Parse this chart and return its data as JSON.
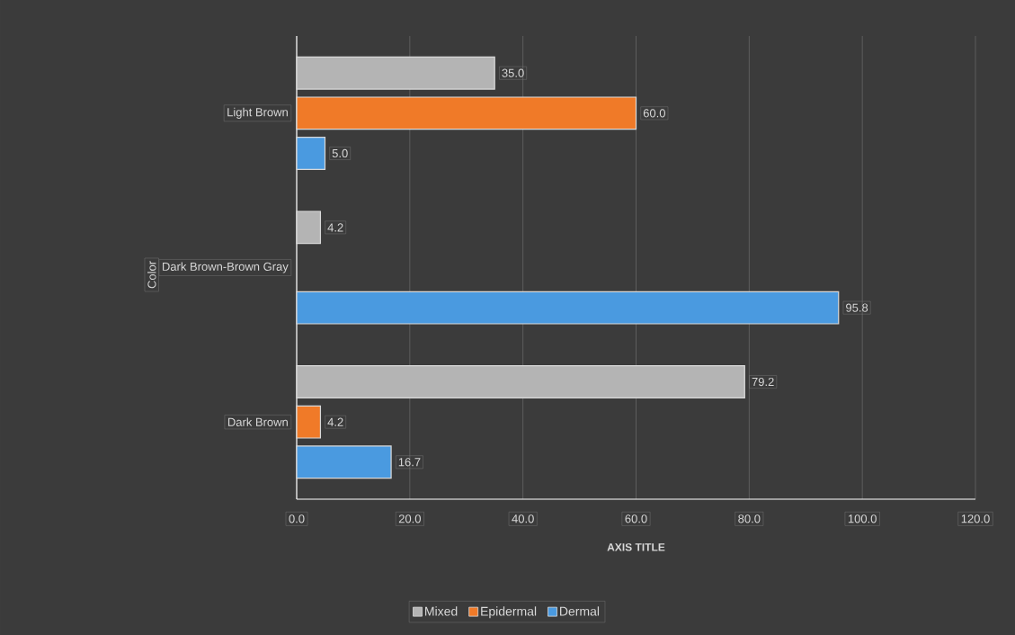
{
  "chart_data": {
    "type": "bar",
    "orientation": "horizontal",
    "xlabel": "AXIS TITLE",
    "ylabel": "Color",
    "categories": [
      "Light Brown",
      "Dark Brown-Brown Gray",
      "Dark Brown"
    ],
    "series": [
      {
        "name": "Mixed",
        "color": "#b4b4b4",
        "values": [
          35.0,
          4.2,
          79.2
        ],
        "value_labels": [
          "35.0",
          "4.2",
          "79.2"
        ]
      },
      {
        "name": "Epidermal",
        "color": "#f07a28",
        "values": [
          60.0,
          null,
          4.2
        ],
        "value_labels": [
          "60.0",
          null,
          "4.2"
        ]
      },
      {
        "name": "Dermal",
        "color": "#4a9ae0",
        "values": [
          5.0,
          95.8,
          16.7
        ],
        "value_labels": [
          "5.0",
          "95.8",
          "16.7"
        ]
      }
    ],
    "xlim": [
      0,
      120
    ],
    "xticks": [
      {
        "value": 0,
        "label": "0.0"
      },
      {
        "value": 20,
        "label": "20.0"
      },
      {
        "value": 40,
        "label": "40.0"
      },
      {
        "value": 60,
        "label": "60.0"
      },
      {
        "value": 80,
        "label": "80.0"
      },
      {
        "value": 100,
        "label": "100.0"
      },
      {
        "value": 120,
        "label": "120.0"
      }
    ],
    "grid": "x",
    "legend": "bottom"
  }
}
